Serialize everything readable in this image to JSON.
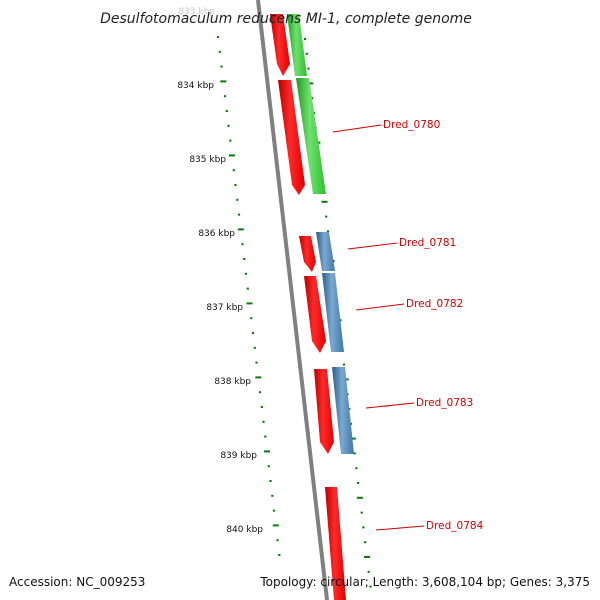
{
  "header": {
    "title": "Desulfotomaculum reducens MI-1, complete genome"
  },
  "footer": {
    "accession": "Accession: NC_009253",
    "topology": "Topology: circular; Length: 3,608,104 bp; Genes: 3,375"
  },
  "ruler": {
    "labels": [
      "833 kbp",
      "834 kbp",
      "835 kbp",
      "836 kbp",
      "837 kbp",
      "838 kbp",
      "839 kbp",
      "840 kbp"
    ]
  },
  "genes": [
    {
      "label": "Dred_0780"
    },
    {
      "label": "Dred_0781"
    },
    {
      "label": "Dred_0782"
    },
    {
      "label": "Dred_0783"
    },
    {
      "label": "Dred_0784"
    }
  ],
  "colors": {
    "backbone": "#808080",
    "cds": "#ff0000",
    "rna_green": "#33cc33",
    "rna_blue": "#4682b4",
    "gc_skew": "#0a7a0a",
    "gene_label": "#d00000"
  }
}
